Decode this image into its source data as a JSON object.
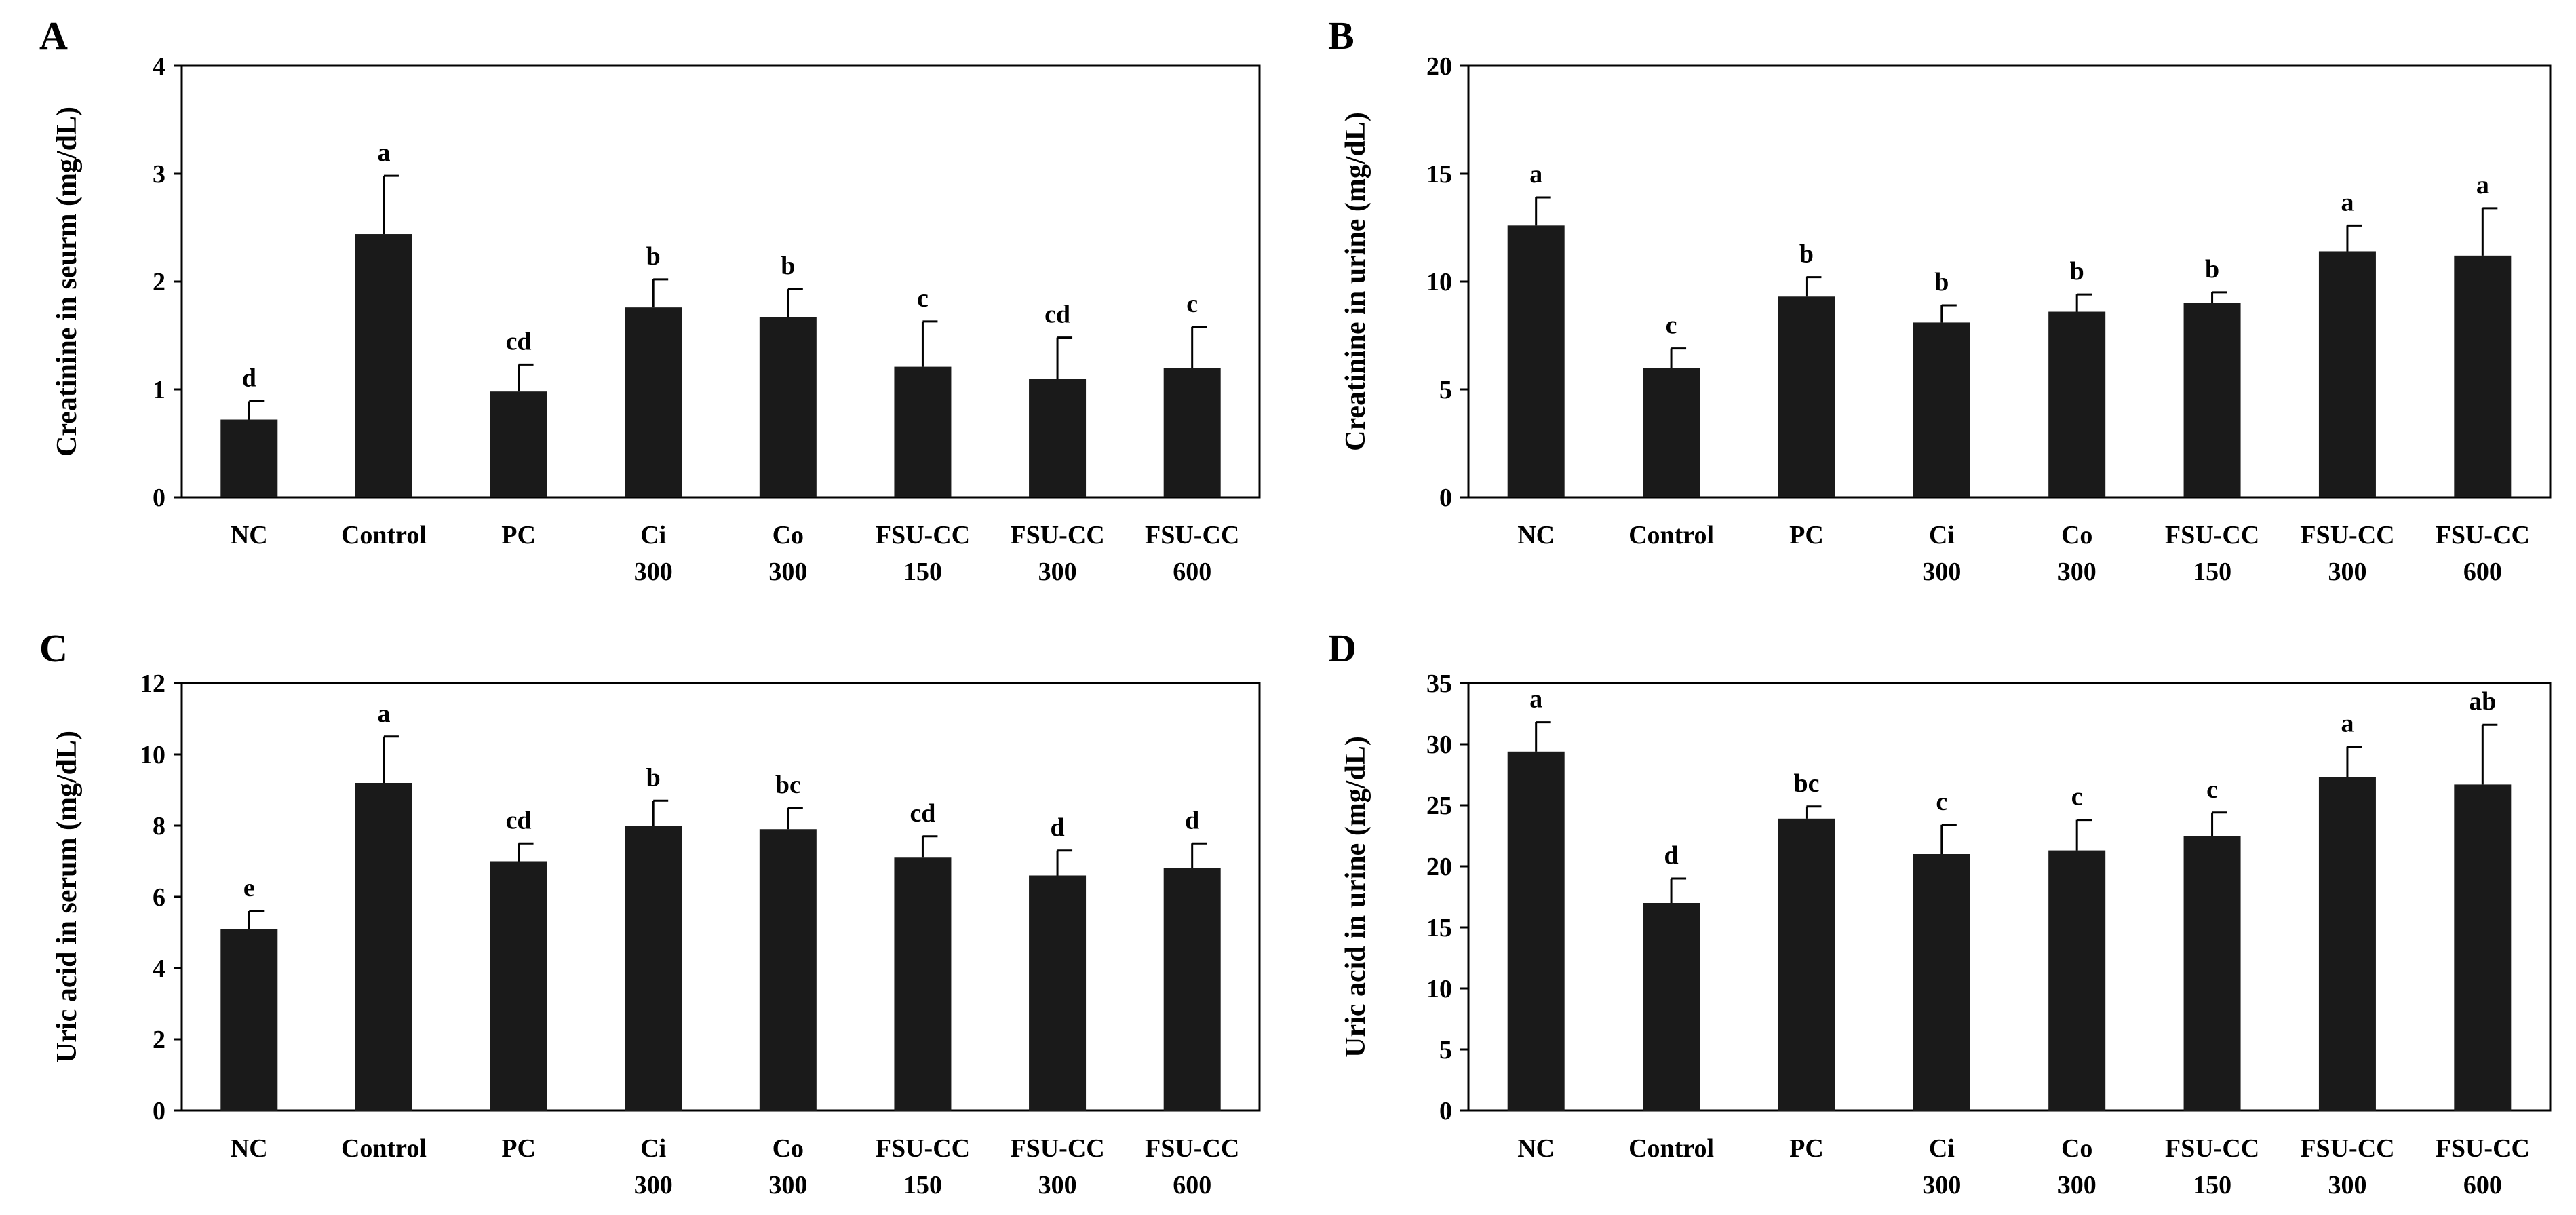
{
  "chart_data": [
    {
      "type": "bar",
      "panel": "A",
      "title": "",
      "xlabel": "",
      "ylabel": "Creatinine in seurm (mg/dL)",
      "ylim": [
        0,
        4
      ],
      "yticks": [
        0,
        1,
        2,
        3,
        4
      ],
      "grid": false,
      "categories": [
        [
          "NC"
        ],
        [
          "Control"
        ],
        [
          "PC"
        ],
        [
          "Ci",
          "300"
        ],
        [
          "Co",
          "300"
        ],
        [
          "FSU-CC",
          "150"
        ],
        [
          "FSU-CC",
          "300"
        ],
        [
          "FSU-CC",
          "600"
        ]
      ],
      "values": [
        0.72,
        2.44,
        0.98,
        1.76,
        1.67,
        1.21,
        1.1,
        1.2
      ],
      "errors": [
        0.17,
        0.54,
        0.25,
        0.26,
        0.26,
        0.42,
        0.38,
        0.38
      ],
      "labels": [
        "d",
        "a",
        "cd",
        "b",
        "b",
        "c",
        "cd",
        "c"
      ]
    },
    {
      "type": "bar",
      "panel": "B",
      "title": "",
      "xlabel": "",
      "ylabel": "Creatinine in urine (mg/dL)",
      "ylim": [
        0,
        20
      ],
      "yticks": [
        0,
        5,
        10,
        15,
        20
      ],
      "grid": false,
      "categories": [
        [
          "NC"
        ],
        [
          "Control"
        ],
        [
          "PC"
        ],
        [
          "Ci",
          "300"
        ],
        [
          "Co",
          "300"
        ],
        [
          "FSU-CC",
          "150"
        ],
        [
          "FSU-CC",
          "300"
        ],
        [
          "FSU-CC",
          "600"
        ]
      ],
      "values": [
        12.6,
        6.0,
        9.3,
        8.1,
        8.6,
        9.0,
        11.4,
        11.2
      ],
      "errors": [
        1.3,
        0.9,
        0.9,
        0.8,
        0.8,
        0.5,
        1.2,
        2.2
      ],
      "labels": [
        "a",
        "c",
        "b",
        "b",
        "b",
        "b",
        "a",
        "a"
      ]
    },
    {
      "type": "bar",
      "panel": "C",
      "title": "",
      "xlabel": "",
      "ylabel": "Uric acid in serum (mg/dL)",
      "ylim": [
        0,
        12
      ],
      "yticks": [
        0,
        2,
        4,
        6,
        8,
        10,
        12
      ],
      "grid": false,
      "categories": [
        [
          "NC"
        ],
        [
          "Control"
        ],
        [
          "PC"
        ],
        [
          "Ci",
          "300"
        ],
        [
          "Co",
          "300"
        ],
        [
          "FSU-CC",
          "150"
        ],
        [
          "FSU-CC",
          "300"
        ],
        [
          "FSU-CC",
          "600"
        ]
      ],
      "values": [
        5.1,
        9.2,
        7.0,
        8.0,
        7.9,
        7.1,
        6.6,
        6.8
      ],
      "errors": [
        0.5,
        1.3,
        0.5,
        0.7,
        0.6,
        0.6,
        0.7,
        0.7
      ],
      "labels": [
        "e",
        "a",
        "cd",
        "b",
        "bc",
        "cd",
        "d",
        "d"
      ]
    },
    {
      "type": "bar",
      "panel": "D",
      "title": "",
      "xlabel": "",
      "ylabel": "Uric acid in urine (mg/dL)",
      "ylim": [
        0,
        35
      ],
      "yticks": [
        0,
        5,
        10,
        15,
        20,
        25,
        30,
        35
      ],
      "grid": false,
      "categories": [
        [
          "NC"
        ],
        [
          "Control"
        ],
        [
          "PC"
        ],
        [
          "Ci",
          "300"
        ],
        [
          "Co",
          "300"
        ],
        [
          "FSU-CC",
          "150"
        ],
        [
          "FSU-CC",
          "300"
        ],
        [
          "FSU-CC",
          "600"
        ]
      ],
      "values": [
        29.4,
        17.0,
        23.9,
        21.0,
        21.3,
        22.5,
        27.3,
        26.7
      ],
      "errors": [
        2.4,
        2.0,
        1.0,
        2.4,
        2.5,
        1.9,
        2.5,
        4.9
      ],
      "labels": [
        "a",
        "d",
        "bc",
        "c",
        "c",
        "c",
        "a",
        "ab"
      ]
    }
  ]
}
